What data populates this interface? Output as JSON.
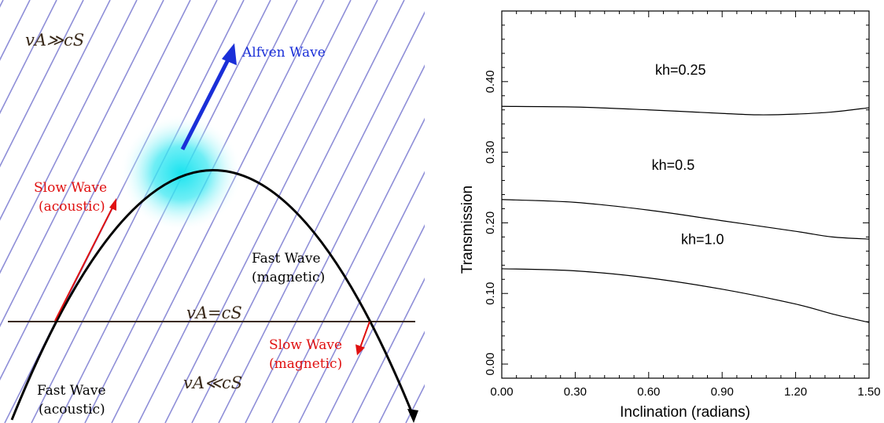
{
  "diagram": {
    "labels": {
      "va_gg_cs": "vA≫cS",
      "va_eq_cs": "vA=cS",
      "va_ll_cs": "vA≪cS",
      "alfven": "Alfven Wave",
      "slow_acoustic_1": "Slow Wave",
      "slow_acoustic_2": "(acoustic)",
      "fast_magnetic_1": "Fast Wave",
      "fast_magnetic_2": "(magnetic)",
      "slow_magnetic_1": "Slow Wave",
      "slow_magnetic_2": "(magnetic)",
      "fast_acoustic_1": "Fast Wave",
      "fast_acoustic_2": "(acoustic)"
    },
    "colors": {
      "field_lines": "#8f8fd8",
      "layer_line": "#3a2a1a",
      "alfven": "#1a2fd8",
      "slow": "#e01010",
      "glow": "#19e3ef",
      "trajectory": "#000000"
    }
  },
  "chart_data": {
    "type": "line",
    "xlabel": "Inclination (radians)",
    "ylabel": "Transmission",
    "xlim": [
      0.0,
      1.5
    ],
    "ylim": [
      -0.02,
      0.5
    ],
    "x_ticks": [
      "0.00",
      "0.30",
      "0.60",
      "0.90",
      "1.20",
      "1.50"
    ],
    "y_ticks": [
      "0.00",
      "0.10",
      "0.20",
      "0.30",
      "0.40"
    ],
    "series": [
      {
        "name": "kh=0.25",
        "x": [
          0.0,
          0.3,
          0.6,
          0.9,
          1.05,
          1.2,
          1.35,
          1.5
        ],
        "y": [
          0.365,
          0.364,
          0.36,
          0.355,
          0.353,
          0.354,
          0.357,
          0.363
        ]
      },
      {
        "name": "kh=0.5",
        "x": [
          0.0,
          0.3,
          0.6,
          0.9,
          1.2,
          1.35,
          1.5
        ],
        "y": [
          0.233,
          0.229,
          0.218,
          0.203,
          0.188,
          0.18,
          0.177
        ]
      },
      {
        "name": "kh=1.0",
        "x": [
          0.0,
          0.3,
          0.6,
          0.9,
          1.2,
          1.35,
          1.5
        ],
        "y": [
          0.135,
          0.132,
          0.122,
          0.106,
          0.085,
          0.071,
          0.059
        ]
      }
    ]
  }
}
